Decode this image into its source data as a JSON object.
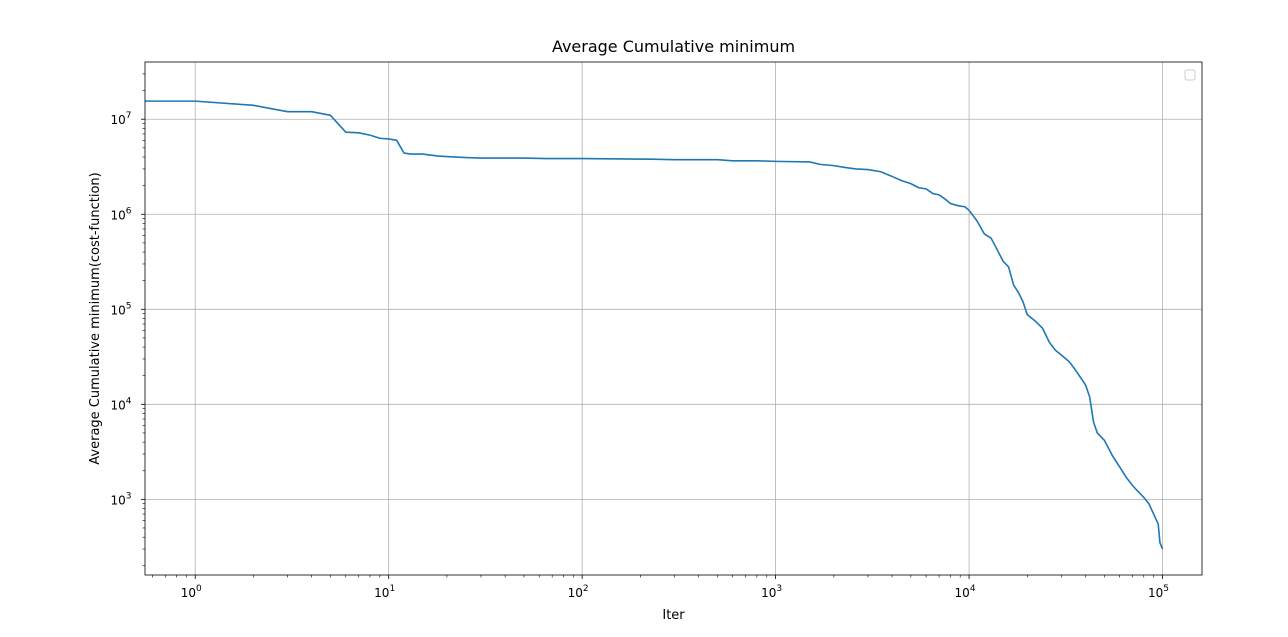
{
  "chart_data": {
    "type": "line",
    "title": "Average Cumulative minimum",
    "xlabel": "Iter",
    "ylabel": "Average Cumulative minimum(cost-function)",
    "xscale": "log",
    "yscale": "log",
    "xlim": [
      0.55,
      160000
    ],
    "ylim": [
      160,
      40000000
    ],
    "grid": true,
    "legend": "top-right (empty)",
    "line_color": "#1f77b4",
    "x_ticks": [
      {
        "value": 1,
        "label": "10^0"
      },
      {
        "value": 10,
        "label": "10^1"
      },
      {
        "value": 100,
        "label": "10^2"
      },
      {
        "value": 1000,
        "label": "10^3"
      },
      {
        "value": 10000,
        "label": "10^4"
      },
      {
        "value": 100000,
        "label": "10^5"
      }
    ],
    "y_ticks": [
      {
        "value": 1000,
        "label": "10^3"
      },
      {
        "value": 10000,
        "label": "10^4"
      },
      {
        "value": 100000,
        "label": "10^5"
      },
      {
        "value": 1000000,
        "label": "10^6"
      },
      {
        "value": 10000000,
        "label": "10^7"
      }
    ],
    "series": [
      {
        "x": [
          0.55,
          1,
          2,
          3,
          4,
          5,
          6,
          7,
          8,
          9,
          10,
          11,
          12,
          13,
          15,
          18,
          20,
          25,
          30,
          50,
          65,
          100,
          230,
          300,
          500,
          600,
          800,
          1000,
          1500,
          1700,
          2000,
          2300,
          2600,
          3000,
          3500,
          4000,
          4500,
          5000,
          5500,
          6000,
          6500,
          7000,
          7500,
          8000,
          8500,
          9000,
          9500,
          10000,
          11000,
          12000,
          13000,
          14000,
          15000,
          16000,
          17000,
          18000,
          19000,
          20000,
          22000,
          24000,
          26000,
          28000,
          30000,
          33000,
          36000,
          40000,
          42000,
          44000,
          46000,
          50000,
          55000,
          60000,
          65000,
          70000,
          75000,
          80000,
          85000,
          90000,
          95000,
          97000,
          100000
        ],
        "y": [
          15500000,
          15500000,
          14000000,
          12000000,
          12000000,
          11000000,
          7300000,
          7200000,
          6800000,
          6300000,
          6200000,
          6000000,
          4400000,
          4300000,
          4300000,
          4100000,
          4050000,
          3950000,
          3900000,
          3900000,
          3850000,
          3850000,
          3800000,
          3750000,
          3750000,
          3650000,
          3650000,
          3600000,
          3550000,
          3350000,
          3250000,
          3100000,
          3000000,
          2950000,
          2800000,
          2500000,
          2250000,
          2100000,
          1900000,
          1850000,
          1650000,
          1600000,
          1450000,
          1300000,
          1250000,
          1220000,
          1200000,
          1100000,
          850000,
          620000,
          560000,
          420000,
          320000,
          280000,
          180000,
          150000,
          120000,
          88000,
          75000,
          63000,
          45000,
          37000,
          33000,
          28000,
          22000,
          16000,
          12000,
          6500,
          5000,
          4200,
          2900,
          2200,
          1700,
          1400,
          1200,
          1050,
          900,
          700,
          550,
          350,
          300
        ]
      }
    ]
  }
}
